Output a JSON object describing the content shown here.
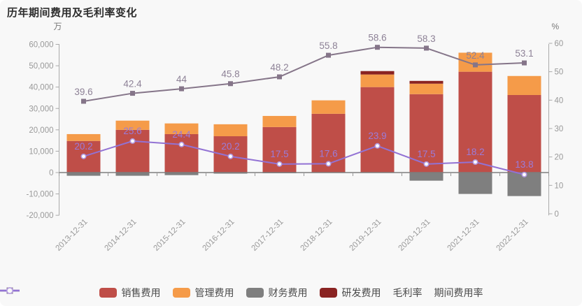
{
  "title": "历年期间费用及毛利率变化",
  "left_axis_unit": "万",
  "right_axis_unit": "%",
  "chart_data": {
    "type": "bar",
    "subtype": "stacked-bars-with-percentage-lines",
    "categories": [
      "2013-12-31",
      "2014-12-31",
      "2015-12-31",
      "2016-12-31",
      "2017-12-31",
      "2018-12-31",
      "2019-12-31",
      "2020-12-31",
      "2021-12-31",
      "2022-12-31"
    ],
    "left_axis": {
      "min": -20000,
      "max": 60000,
      "step": 10000,
      "tick_labels": [
        "-20,000",
        "-10,000",
        "0",
        "10,000",
        "20,000",
        "30,000",
        "40,000",
        "50,000",
        "60,000"
      ]
    },
    "right_axis": {
      "min": 0,
      "max": 60,
      "step": 10,
      "tick_labels": [
        "0",
        "10",
        "20",
        "30",
        "40",
        "50",
        "60"
      ]
    },
    "bar_series": [
      {
        "name": "销售费用",
        "color": "#bf4e48",
        "values": [
          14800,
          20000,
          18000,
          17000,
          21300,
          27500,
          40000,
          36700,
          47200,
          36300
        ]
      },
      {
        "name": "管理费用",
        "color": "#f59b49",
        "values": [
          3200,
          4300,
          5000,
          5600,
          5200,
          6300,
          5900,
          4900,
          8900,
          8900
        ]
      },
      {
        "name": "财务费用",
        "color": "#7f7f7f",
        "values": [
          -1500,
          -1500,
          -1200,
          -500,
          -300,
          0,
          0,
          -3800,
          -10000,
          -11000
        ]
      },
      {
        "name": "研发费用",
        "color": "#8a2322",
        "values": [
          0,
          0,
          0,
          0,
          0,
          0,
          1600,
          1300,
          0,
          0
        ]
      }
    ],
    "line_series": [
      {
        "name": "毛利率",
        "color": "#857589",
        "marker": "square",
        "label_class": "gm-label",
        "values": [
          39.6,
          42.4,
          44,
          45.8,
          48.2,
          55.8,
          58.6,
          58.3,
          52.4,
          53.1
        ],
        "labels": [
          "39.6",
          "42.4",
          "44",
          "45.8",
          "48.2",
          "55.8",
          "58.6",
          "58.3",
          "52.4",
          "53.1"
        ]
      },
      {
        "name": "期间费用率",
        "color": "#9272d4",
        "marker": "circle-hollow",
        "marker_stroke": "#b29ae0",
        "label_class": "pe-label",
        "values": [
          20.2,
          25.6,
          24.4,
          20.2,
          17.5,
          17.6,
          23.9,
          17.5,
          18.2,
          13.8
        ],
        "labels": [
          "20.2",
          "25.6",
          "24.4",
          "20.2",
          "17.5",
          "17.6",
          "23.9",
          "17.5",
          "18.2",
          "13.8"
        ]
      }
    ],
    "legend_position": "bottom",
    "grid": false
  }
}
